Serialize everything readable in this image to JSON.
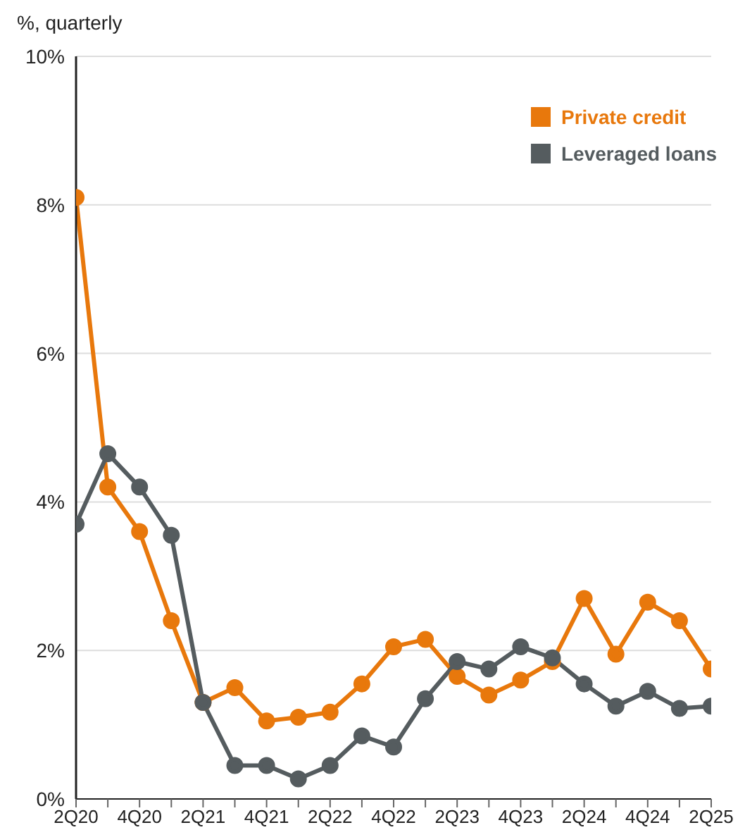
{
  "chart_data": {
    "type": "line",
    "ylabel": "%, quarterly",
    "categories": [
      "2Q20",
      null,
      "4Q20",
      null,
      "2Q21",
      null,
      "4Q21",
      null,
      "2Q22",
      null,
      "4Q22",
      null,
      "2Q23",
      null,
      "4Q23",
      null,
      "2Q24",
      null,
      "4Q24",
      null,
      "2Q25"
    ],
    "series": [
      {
        "name": "Private credit",
        "color": "#e8780c",
        "values": [
          8.1,
          4.2,
          3.6,
          2.4,
          1.3,
          1.5,
          1.05,
          1.1,
          1.17,
          1.55,
          2.05,
          2.15,
          1.65,
          1.4,
          1.6,
          1.85,
          2.7,
          1.95,
          2.65,
          2.4,
          1.75
        ]
      },
      {
        "name": "Leveraged loans",
        "color": "#555c5f",
        "values": [
          3.7,
          4.65,
          4.2,
          3.55,
          1.3,
          0.45,
          0.45,
          0.27,
          0.45,
          0.85,
          0.7,
          1.35,
          1.85,
          1.75,
          2.05,
          1.9,
          1.55,
          1.25,
          1.45,
          1.22,
          1.25
        ]
      }
    ],
    "ylim": [
      0,
      10
    ],
    "yticks": [
      {
        "value": 0,
        "label": "0%"
      },
      {
        "value": 2,
        "label": "2%"
      },
      {
        "value": 4,
        "label": "4%"
      },
      {
        "value": 6,
        "label": "6%"
      },
      {
        "value": 8,
        "label": "8%"
      },
      {
        "value": 10,
        "label": "10%"
      }
    ],
    "grid": "y",
    "legend": "top right",
    "marker": "circle",
    "line_style": "solid"
  }
}
